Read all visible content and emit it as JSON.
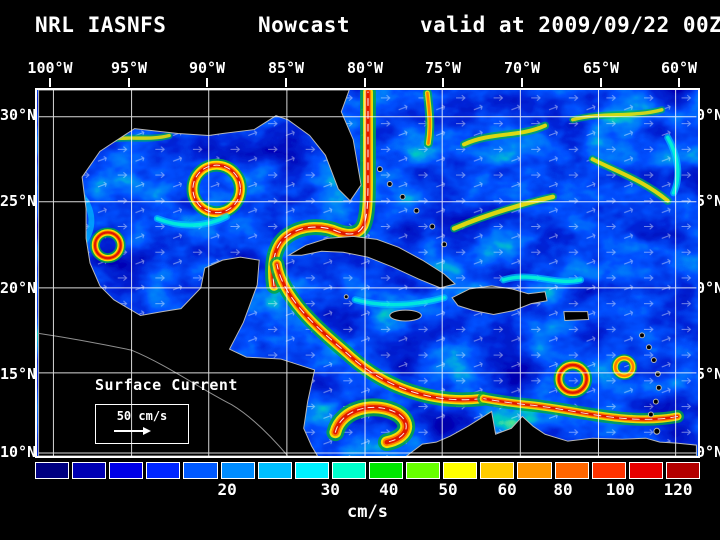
{
  "title": {
    "left": "NRL IASNFS",
    "center": "Nowcast",
    "right": "valid at 2009/09/22 00Z"
  },
  "map": {
    "lon_ticks": [
      "100°W",
      "95°W",
      "90°W",
      "85°W",
      "80°W",
      "75°W",
      "70°W",
      "65°W",
      "60°W"
    ],
    "lat_ticks": [
      "30°N",
      "25°N",
      "20°N",
      "15°N",
      "10°N"
    ],
    "overlay_label": "Surface Current",
    "scale_label": "50 cm/s"
  },
  "colorbar": {
    "unit": "cm/s",
    "tick_labels": [
      {
        "text": "20",
        "pos": 28.9
      },
      {
        "text": "30",
        "pos": 44.4
      },
      {
        "text": "40",
        "pos": 53.2
      },
      {
        "text": "50",
        "pos": 62.1
      },
      {
        "text": "60",
        "pos": 71.0
      },
      {
        "text": "80",
        "pos": 79.4
      },
      {
        "text": "100",
        "pos": 88.0
      },
      {
        "text": "120",
        "pos": 96.7
      }
    ],
    "colors": [
      "#000080",
      "#0000b3",
      "#0000e6",
      "#0026ff",
      "#0059ff",
      "#008cff",
      "#00bfff",
      "#00f2ff",
      "#00ffcc",
      "#00e600",
      "#66ff00",
      "#ffff00",
      "#ffcc00",
      "#ff9900",
      "#ff6600",
      "#ff3300",
      "#e60000",
      "#b30000"
    ]
  }
}
